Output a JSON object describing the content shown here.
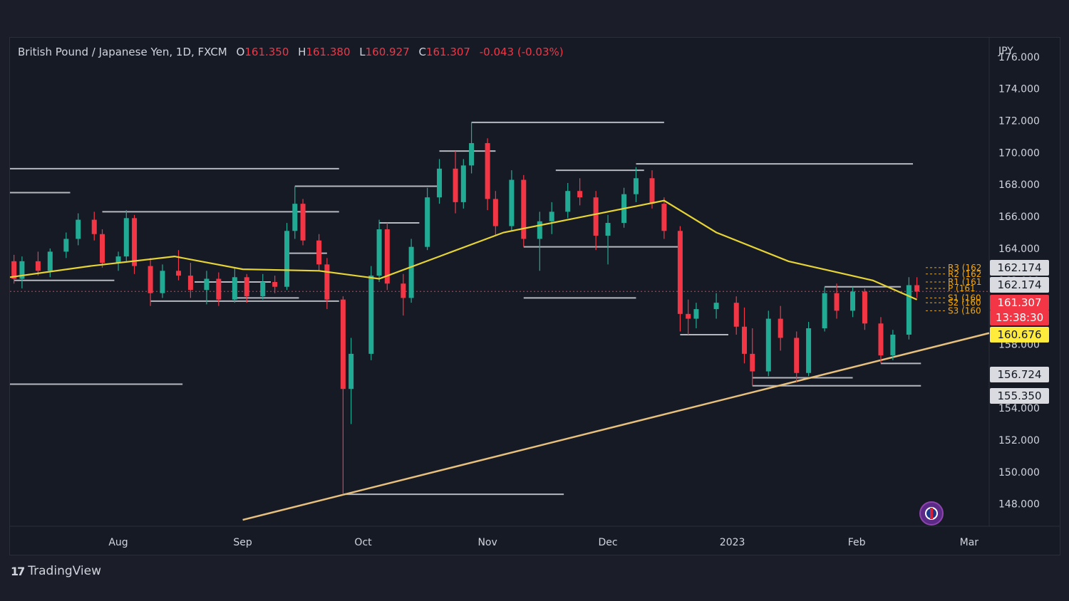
{
  "header": {
    "symbol": "British Pound / Japanese Yen, 1D, FXCM",
    "open_label": "O",
    "open": "161.350",
    "high_label": "H",
    "high": "161.380",
    "low_label": "L",
    "low": "160.927",
    "close_label": "C",
    "close": "161.307",
    "change": "-0.043 (-0.03%)"
  },
  "currency": "JPY",
  "price_tags": {
    "r_level_1": "162.174",
    "r_level_2": "162.174",
    "last_price": "161.307",
    "countdown": "13:38:30",
    "ma_value": "160.676",
    "support_1": "156.724",
    "support_2": "155.350"
  },
  "pivot_labels": [
    "R3 (162",
    "R2 (162",
    "R1 (161",
    "P (161",
    "S1 (160",
    "S2 (160",
    "S3 (160"
  ],
  "branding": {
    "logo_mark": "17",
    "logo_text": "TradingView"
  },
  "colors": {
    "up": "#22ab94",
    "down": "#f23645",
    "ma": "#e6d335",
    "trendline": "#e8c07d",
    "level": "#c8cad0",
    "pivot": "#f7a600"
  },
  "chart_data": {
    "type": "candlestick",
    "title": "British Pound / Japanese Yen, 1D, FXCM",
    "ylim": [
      147,
      177
    ],
    "y_ticks": [
      "176.000",
      "174.000",
      "172.000",
      "170.000",
      "168.000",
      "166.000",
      "164.000",
      "162.000",
      "160.000",
      "158.000",
      "156.000",
      "154.000",
      "152.000",
      "150.000",
      "148.000"
    ],
    "x_ticks": [
      {
        "label": "Aug",
        "date": "2022-08-01"
      },
      {
        "label": "Sep",
        "date": "2022-09-01"
      },
      {
        "label": "Oct",
        "date": "2022-10-01"
      },
      {
        "label": "Nov",
        "date": "2022-11-01"
      },
      {
        "label": "Dec",
        "date": "2022-12-01"
      },
      {
        "label": "2023",
        "date": "2023-01-01"
      },
      {
        "label": "Feb",
        "date": "2023-02-01"
      },
      {
        "label": "Mar",
        "date": "2023-03-01"
      }
    ],
    "x_range": [
      "2022-07-05",
      "2023-03-06"
    ],
    "candles": [
      [
        "2022-07-06",
        163.2,
        163.6,
        161.8,
        162.1
      ],
      [
        "2022-07-08",
        162.1,
        163.5,
        161.5,
        163.2
      ],
      [
        "2022-07-12",
        163.2,
        163.8,
        162.3,
        162.6
      ],
      [
        "2022-07-15",
        162.6,
        164.0,
        162.2,
        163.8
      ],
      [
        "2022-07-19",
        163.8,
        165.0,
        163.4,
        164.6
      ],
      [
        "2022-07-22",
        164.6,
        166.2,
        164.2,
        165.8
      ],
      [
        "2022-07-26",
        165.8,
        166.3,
        164.5,
        164.9
      ],
      [
        "2022-07-28",
        164.9,
        165.2,
        162.8,
        163.1
      ],
      [
        "2022-08-01",
        163.1,
        163.8,
        162.6,
        163.5
      ],
      [
        "2022-08-03",
        163.5,
        166.4,
        163.2,
        165.9
      ],
      [
        "2022-08-05",
        165.9,
        166.1,
        162.4,
        162.9
      ],
      [
        "2022-08-09",
        162.9,
        163.4,
        160.4,
        161.2
      ],
      [
        "2022-08-12",
        161.2,
        163.0,
        160.9,
        162.6
      ],
      [
        "2022-08-16",
        162.6,
        163.9,
        162.0,
        162.3
      ],
      [
        "2022-08-19",
        162.3,
        163.1,
        160.9,
        161.4
      ],
      [
        "2022-08-23",
        161.4,
        162.6,
        160.5,
        162.1
      ],
      [
        "2022-08-26",
        162.1,
        162.5,
        160.4,
        160.8
      ],
      [
        "2022-08-30",
        160.8,
        162.8,
        160.6,
        162.2
      ],
      [
        "2022-09-02",
        162.2,
        162.4,
        160.6,
        161.0
      ],
      [
        "2022-09-06",
        161.0,
        162.4,
        160.8,
        161.9
      ],
      [
        "2022-09-09",
        161.9,
        162.3,
        161.2,
        161.6
      ],
      [
        "2022-09-12",
        161.6,
        165.6,
        161.4,
        165.1
      ],
      [
        "2022-09-14",
        165.1,
        167.9,
        164.6,
        166.8
      ],
      [
        "2022-09-16",
        166.8,
        167.1,
        164.2,
        164.5
      ],
      [
        "2022-09-20",
        164.5,
        164.9,
        162.6,
        163.0
      ],
      [
        "2022-09-22",
        163.0,
        163.4,
        160.2,
        160.8
      ],
      [
        "2022-09-26",
        160.8,
        161.0,
        148.6,
        155.2
      ],
      [
        "2022-09-28",
        155.2,
        158.4,
        153.0,
        157.4
      ],
      [
        "2022-10-03",
        157.4,
        162.9,
        157.0,
        162.3
      ],
      [
        "2022-10-05",
        162.3,
        165.8,
        161.9,
        165.2
      ],
      [
        "2022-10-07",
        165.2,
        165.6,
        161.4,
        161.8
      ],
      [
        "2022-10-11",
        161.8,
        162.4,
        159.8,
        160.9
      ],
      [
        "2022-10-13",
        160.9,
        164.6,
        160.6,
        164.1
      ],
      [
        "2022-10-17",
        164.1,
        167.8,
        163.9,
        167.2
      ],
      [
        "2022-10-20",
        167.2,
        169.6,
        166.8,
        169.0
      ],
      [
        "2022-10-24",
        169.0,
        170.1,
        166.2,
        166.9
      ],
      [
        "2022-10-26",
        166.9,
        169.6,
        166.5,
        169.2
      ],
      [
        "2022-10-28",
        169.2,
        171.9,
        168.7,
        170.6
      ],
      [
        "2022-11-01",
        170.6,
        170.9,
        166.4,
        167.1
      ],
      [
        "2022-11-03",
        167.1,
        167.6,
        164.8,
        165.4
      ],
      [
        "2022-11-07",
        165.4,
        168.9,
        165.1,
        168.3
      ],
      [
        "2022-11-10",
        168.3,
        168.6,
        164.1,
        164.6
      ],
      [
        "2022-11-14",
        164.6,
        166.3,
        162.6,
        165.7
      ],
      [
        "2022-11-17",
        165.7,
        166.9,
        164.9,
        166.3
      ],
      [
        "2022-11-21",
        166.3,
        168.1,
        165.9,
        167.6
      ],
      [
        "2022-11-24",
        167.6,
        168.4,
        166.7,
        167.2
      ],
      [
        "2022-11-28",
        167.2,
        167.6,
        163.9,
        164.8
      ],
      [
        "2022-12-01",
        164.8,
        166.1,
        163.0,
        165.6
      ],
      [
        "2022-12-05",
        165.6,
        167.8,
        165.3,
        167.4
      ],
      [
        "2022-12-08",
        167.4,
        169.1,
        166.9,
        168.4
      ],
      [
        "2022-12-12",
        168.4,
        168.9,
        166.5,
        166.8
      ],
      [
        "2022-12-15",
        166.8,
        167.2,
        164.6,
        165.1
      ],
      [
        "2022-12-19",
        165.1,
        165.4,
        158.8,
        159.9
      ],
      [
        "2022-12-21",
        159.9,
        160.8,
        158.6,
        159.6
      ],
      [
        "2022-12-23",
        159.6,
        160.6,
        159.0,
        160.2
      ],
      [
        "2022-12-28",
        160.2,
        161.2,
        159.6,
        160.6
      ],
      [
        "2023-01-02",
        160.6,
        161.0,
        158.6,
        159.1
      ],
      [
        "2023-01-04",
        159.1,
        160.3,
        156.8,
        157.4
      ],
      [
        "2023-01-06",
        157.4,
        159.0,
        155.4,
        156.3
      ],
      [
        "2023-01-10",
        156.3,
        160.1,
        156.0,
        159.6
      ],
      [
        "2023-01-13",
        159.6,
        160.4,
        157.6,
        158.4
      ],
      [
        "2023-01-17",
        158.4,
        158.8,
        155.6,
        156.2
      ],
      [
        "2023-01-20",
        156.2,
        159.4,
        156.0,
        159.0
      ],
      [
        "2023-01-24",
        159.0,
        161.6,
        158.8,
        161.2
      ],
      [
        "2023-01-27",
        161.2,
        161.8,
        159.6,
        160.1
      ],
      [
        "2023-01-31",
        160.1,
        161.6,
        159.7,
        161.3
      ],
      [
        "2023-02-03",
        161.3,
        161.5,
        158.9,
        159.3
      ],
      [
        "2023-02-07",
        159.3,
        159.7,
        156.8,
        157.3
      ],
      [
        "2023-02-10",
        157.3,
        158.9,
        157.0,
        158.6
      ],
      [
        "2023-02-14",
        158.6,
        162.2,
        158.3,
        161.7
      ],
      [
        "2023-02-16",
        161.7,
        162.2,
        160.9,
        161.3
      ]
    ],
    "ma": [
      [
        "2022-07-05",
        162.2
      ],
      [
        "2022-07-25",
        162.9
      ],
      [
        "2022-08-15",
        163.5
      ],
      [
        "2022-09-01",
        162.7
      ],
      [
        "2022-09-20",
        162.6
      ],
      [
        "2022-10-05",
        162.1
      ],
      [
        "2022-10-20",
        163.5
      ],
      [
        "2022-11-05",
        165.0
      ],
      [
        "2022-11-25",
        166.0
      ],
      [
        "2022-12-15",
        167.0
      ],
      [
        "2022-12-28",
        165.0
      ],
      [
        "2023-01-15",
        163.2
      ],
      [
        "2023-02-05",
        162.0
      ],
      [
        "2023-02-16",
        160.8
      ]
    ],
    "trendline": [
      [
        "2022-09-01",
        147.0
      ],
      [
        "2023-03-06",
        158.7
      ]
    ],
    "levels": [
      [
        162.0,
        "2022-07-06",
        "2022-07-31"
      ],
      [
        167.5,
        "2022-07-05",
        "2022-07-20"
      ],
      [
        169.0,
        "2022-07-05",
        "2022-09-25"
      ],
      [
        166.3,
        "2022-07-28",
        "2022-09-25"
      ],
      [
        160.7,
        "2022-08-09",
        "2022-09-25"
      ],
      [
        161.9,
        "2022-08-20",
        "2022-09-08"
      ],
      [
        155.5,
        "2022-07-05",
        "2022-08-17"
      ],
      [
        167.9,
        "2022-09-14",
        "2022-10-20"
      ],
      [
        160.9,
        "2022-08-30",
        "2022-09-15"
      ],
      [
        163.7,
        "2022-09-12",
        "2022-09-22"
      ],
      [
        148.6,
        "2022-09-26",
        "2022-11-20"
      ],
      [
        165.6,
        "2022-10-05",
        "2022-10-15"
      ],
      [
        170.1,
        "2022-10-20",
        "2022-11-03"
      ],
      [
        171.9,
        "2022-10-28",
        "2022-12-15"
      ],
      [
        168.9,
        "2022-11-18",
        "2022-12-10"
      ],
      [
        164.1,
        "2022-11-10",
        "2022-12-19"
      ],
      [
        169.3,
        "2022-12-08",
        "2023-02-15"
      ],
      [
        160.9,
        "2022-11-10",
        "2022-12-08"
      ],
      [
        158.6,
        "2022-12-19",
        "2022-12-31"
      ],
      [
        155.4,
        "2023-01-06",
        "2023-02-17"
      ],
      [
        155.9,
        "2023-01-06",
        "2023-01-31"
      ],
      [
        161.6,
        "2023-01-24",
        "2023-02-12"
      ],
      [
        156.8,
        "2023-02-07",
        "2023-02-17"
      ]
    ],
    "pivots": [
      162.8,
      162.4,
      161.9,
      161.5,
      160.9,
      160.6,
      160.1
    ],
    "current_price": 161.307
  }
}
